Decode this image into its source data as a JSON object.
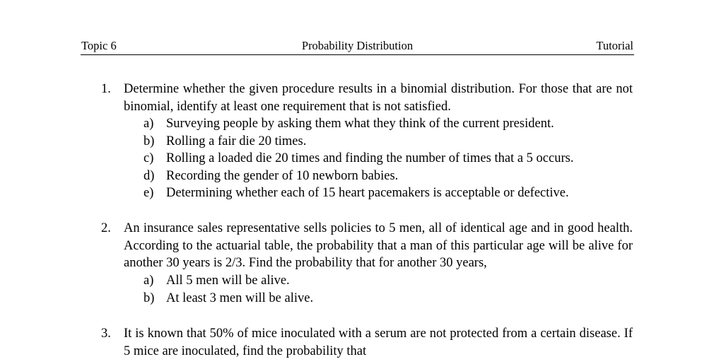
{
  "header": {
    "left": "Topic 6",
    "center": "Probability Distribution",
    "right": "Tutorial"
  },
  "questions": [
    {
      "number": "1.",
      "text": "Determine whether the given procedure results in a binomial distribution. For those that are not binomial, identify at least one requirement that is not satisfied.",
      "items": [
        {
          "letter": "a)",
          "text": "Surveying people by asking them what they think of the current president."
        },
        {
          "letter": "b)",
          "text": "Rolling a fair die 20 times."
        },
        {
          "letter": "c)",
          "text": "Rolling a loaded die 20 times and finding the number of times that a 5 occurs."
        },
        {
          "letter": "d)",
          "text": "Recording the gender of 10 newborn babies."
        },
        {
          "letter": "e)",
          "text": "Determining whether each of 15 heart pacemakers is acceptable or defective."
        }
      ]
    },
    {
      "number": "2.",
      "text": "An insurance sales representative sells policies to 5 men, all of identical age and in good health. According to the actuarial table, the probability that a man of this particular age will be alive for another 30 years is 2/3. Find the probability that for another 30 years,",
      "items": [
        {
          "letter": "a)",
          "text": "All 5 men will be alive."
        },
        {
          "letter": "b)",
          "text": "At least 3 men will be alive."
        }
      ]
    },
    {
      "number": "3.",
      "text": "It is known that 50% of mice inoculated with a serum are not protected from a certain disease. If 5 mice are inoculated, find the probability that",
      "items": []
    }
  ]
}
